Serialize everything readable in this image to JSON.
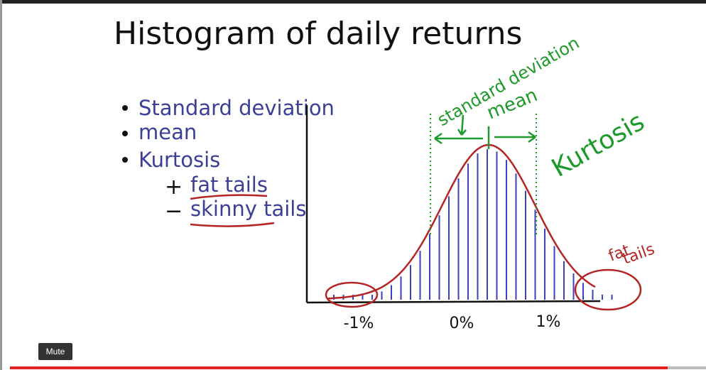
{
  "title": "Histogram of daily returns",
  "bullets": [
    "Standard deviation",
    "mean",
    "Kurtosis"
  ],
  "sub_bullets": [
    {
      "sign": "+",
      "text": "fat tails"
    },
    {
      "sign": "−",
      "text": "skinny tails"
    }
  ],
  "annotations": {
    "standard_deviation": "standard deviation",
    "mean": "mean",
    "kurtosis": "Kurtosis",
    "fat_tails": [
      "fat",
      "tails"
    ]
  },
  "axis_labels": [
    "-1%",
    "0%",
    "1%"
  ],
  "player": {
    "mute_button": "Mute"
  }
}
